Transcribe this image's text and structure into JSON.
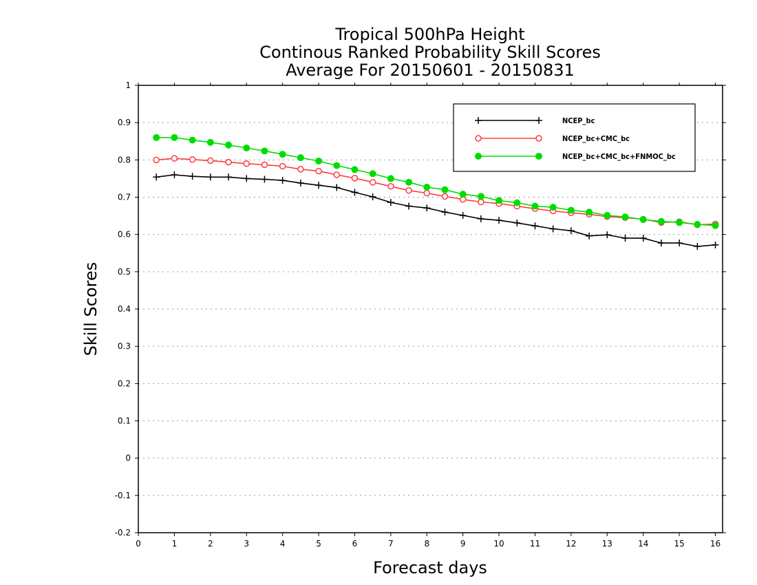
{
  "chart_data": {
    "type": "line",
    "title": [
      "Tropical 500hPa Height",
      "Continous Ranked Probability Skill Scores",
      "Average For 20150601 - 20150831"
    ],
    "xlabel": "Forecast days",
    "ylabel": "Skill Scores",
    "xlim": [
      0,
      16.2
    ],
    "ylim": [
      -0.2,
      1.0
    ],
    "xticks": [
      0,
      1,
      2,
      3,
      4,
      5,
      6,
      7,
      8,
      9,
      10,
      11,
      12,
      13,
      14,
      15,
      16
    ],
    "yticks": [
      -0.2,
      -0.1,
      0,
      0.1,
      0.2,
      0.3,
      0.4,
      0.5,
      0.6,
      0.7,
      0.8,
      0.9,
      1
    ],
    "ytick_labels": [
      "-0.2",
      "-0.1",
      "0",
      "0.1",
      "0.2",
      "0.3",
      "0.4",
      "0.5",
      "0.6",
      "0.7",
      "0.8",
      "0.9",
      "1"
    ],
    "grid": "horizontal dotted",
    "legend_position": "top-right",
    "x": [
      0.5,
      1,
      1.5,
      2,
      2.5,
      3,
      3.5,
      4,
      4.5,
      5,
      5.5,
      6,
      6.5,
      7,
      7.5,
      8,
      8.5,
      9,
      9.5,
      10,
      10.5,
      11,
      11.5,
      12,
      12.5,
      13,
      13.5,
      14,
      14.5,
      15,
      15.5,
      16
    ],
    "series": [
      {
        "name": "NCEP_bc",
        "color": "#000000",
        "marker": "plus",
        "values": [
          0.754,
          0.76,
          0.756,
          0.754,
          0.754,
          0.75,
          0.748,
          0.745,
          0.738,
          0.732,
          0.726,
          0.713,
          0.701,
          0.686,
          0.676,
          0.671,
          0.66,
          0.651,
          0.642,
          0.638,
          0.631,
          0.623,
          0.615,
          0.61,
          0.596,
          0.599,
          0.59,
          0.59,
          0.577,
          0.577,
          0.568,
          0.572
        ]
      },
      {
        "name": "NCEP_bc+CMC_bc",
        "color": "#ff3b3b",
        "marker": "open-circle",
        "values": [
          0.8,
          0.804,
          0.801,
          0.798,
          0.794,
          0.79,
          0.787,
          0.783,
          0.775,
          0.77,
          0.76,
          0.751,
          0.74,
          0.729,
          0.718,
          0.711,
          0.702,
          0.694,
          0.687,
          0.683,
          0.676,
          0.669,
          0.663,
          0.658,
          0.654,
          0.648,
          0.645,
          0.641,
          0.632,
          0.634,
          0.626,
          0.628
        ]
      },
      {
        "name": "NCEP_bc+CMC_bc+FNMOC_bc",
        "color": "#00dd00",
        "marker": "filled-circle",
        "values": [
          0.86,
          0.86,
          0.853,
          0.847,
          0.84,
          0.832,
          0.824,
          0.815,
          0.806,
          0.797,
          0.785,
          0.774,
          0.763,
          0.75,
          0.74,
          0.727,
          0.72,
          0.708,
          0.702,
          0.691,
          0.685,
          0.676,
          0.673,
          0.665,
          0.66,
          0.651,
          0.647,
          0.64,
          0.635,
          0.632,
          0.627,
          0.624
        ]
      }
    ]
  }
}
